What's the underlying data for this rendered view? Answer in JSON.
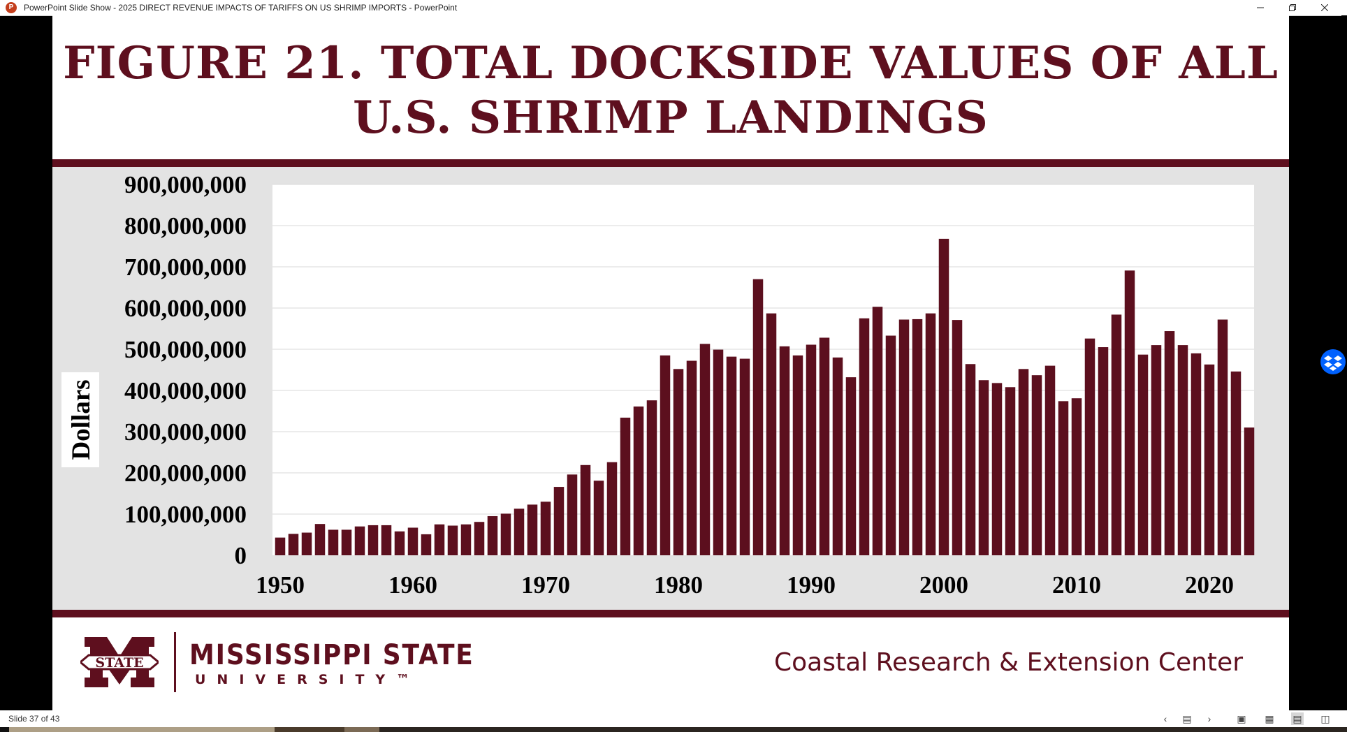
{
  "window": {
    "title": "PowerPoint Slide Show  -  2025 DIRECT REVENUE IMPACTS OF TARIFFS ON US SHRIMP IMPORTS - PowerPoint",
    "app_icon": "powerpoint-icon",
    "controls": [
      "minimize-icon",
      "restore-icon",
      "close-icon"
    ]
  },
  "slide": {
    "title_line1": "FIGURE 21. TOTAL DOCKSIDE VALUES OF ALL",
    "title_line2": "U.S. SHRIMP LANDINGS",
    "footer": {
      "university_name": "MISSISSIPPI STATE",
      "university_sub": "UNIVERSITY™",
      "logo_text": "STATE",
      "center_name": "Coastal Research & Extension Center"
    }
  },
  "colors": {
    "brand_maroon": "#5e0f1e",
    "bar": "#5c0f1e",
    "panel_bg": "#e3e3e3",
    "plot_bg": "#ffffff",
    "grid": "#d9d9d9"
  },
  "chart_data": {
    "type": "bar",
    "title": "FIGURE 21. TOTAL DOCKSIDE VALUES OF ALL U.S. SHRIMP LANDINGS",
    "xlabel": "",
    "ylabel": "Dollars",
    "ylim": [
      0,
      900000000
    ],
    "yticks": [
      0,
      100000000,
      200000000,
      300000000,
      400000000,
      500000000,
      600000000,
      700000000,
      800000000,
      900000000
    ],
    "ytick_labels": [
      "0",
      "100,000,000",
      "200,000,000",
      "300,000,000",
      "400,000,000",
      "500,000,000",
      "600,000,000",
      "700,000,000",
      "800,000,000",
      "900,000,000"
    ],
    "xtick_labels": [
      "1950",
      "1960",
      "1970",
      "1980",
      "1990",
      "2000",
      "2010",
      "2020"
    ],
    "grid": true,
    "categories": [
      1950,
      1951,
      1952,
      1953,
      1954,
      1955,
      1956,
      1957,
      1958,
      1959,
      1960,
      1961,
      1962,
      1963,
      1964,
      1965,
      1966,
      1967,
      1968,
      1969,
      1970,
      1971,
      1972,
      1973,
      1974,
      1975,
      1976,
      1977,
      1978,
      1979,
      1980,
      1981,
      1982,
      1983,
      1984,
      1985,
      1986,
      1987,
      1988,
      1989,
      1990,
      1991,
      1992,
      1993,
      1994,
      1995,
      1996,
      1997,
      1998,
      1999,
      2000,
      2001,
      2002,
      2003,
      2004,
      2005,
      2006,
      2007,
      2008,
      2009,
      2010,
      2011,
      2012,
      2013,
      2014,
      2015,
      2016,
      2017,
      2018,
      2019,
      2020,
      2021,
      2022,
      2023
    ],
    "values": [
      43000000,
      52000000,
      55000000,
      76000000,
      62000000,
      62000000,
      70000000,
      73000000,
      73000000,
      58000000,
      67000000,
      51000000,
      75000000,
      72000000,
      75000000,
      81000000,
      95000000,
      101000000,
      113000000,
      123000000,
      130000000,
      166000000,
      196000000,
      219000000,
      181000000,
      226000000,
      334000000,
      361000000,
      376000000,
      485000000,
      452000000,
      472000000,
      513000000,
      499000000,
      482000000,
      477000000,
      670000000,
      587000000,
      507000000,
      485000000,
      511000000,
      528000000,
      480000000,
      432000000,
      575000000,
      603000000,
      533000000,
      572000000,
      573000000,
      587000000,
      768000000,
      571000000,
      464000000,
      425000000,
      418000000,
      408000000,
      452000000,
      437000000,
      460000000,
      374000000,
      381000000,
      526000000,
      505000000,
      584000000,
      691000000,
      487000000,
      510000000,
      544000000,
      510000000,
      490000000,
      463000000,
      572000000,
      446000000,
      310000000
    ]
  },
  "statusbar": {
    "slide_counter": "Slide 37 of 43",
    "icons": [
      "prev-slide-icon",
      "slide-menu-icon",
      "next-slide-icon",
      "normal-view-icon",
      "slide-sorter-icon",
      "reading-view-icon",
      "slideshow-icon"
    ]
  }
}
